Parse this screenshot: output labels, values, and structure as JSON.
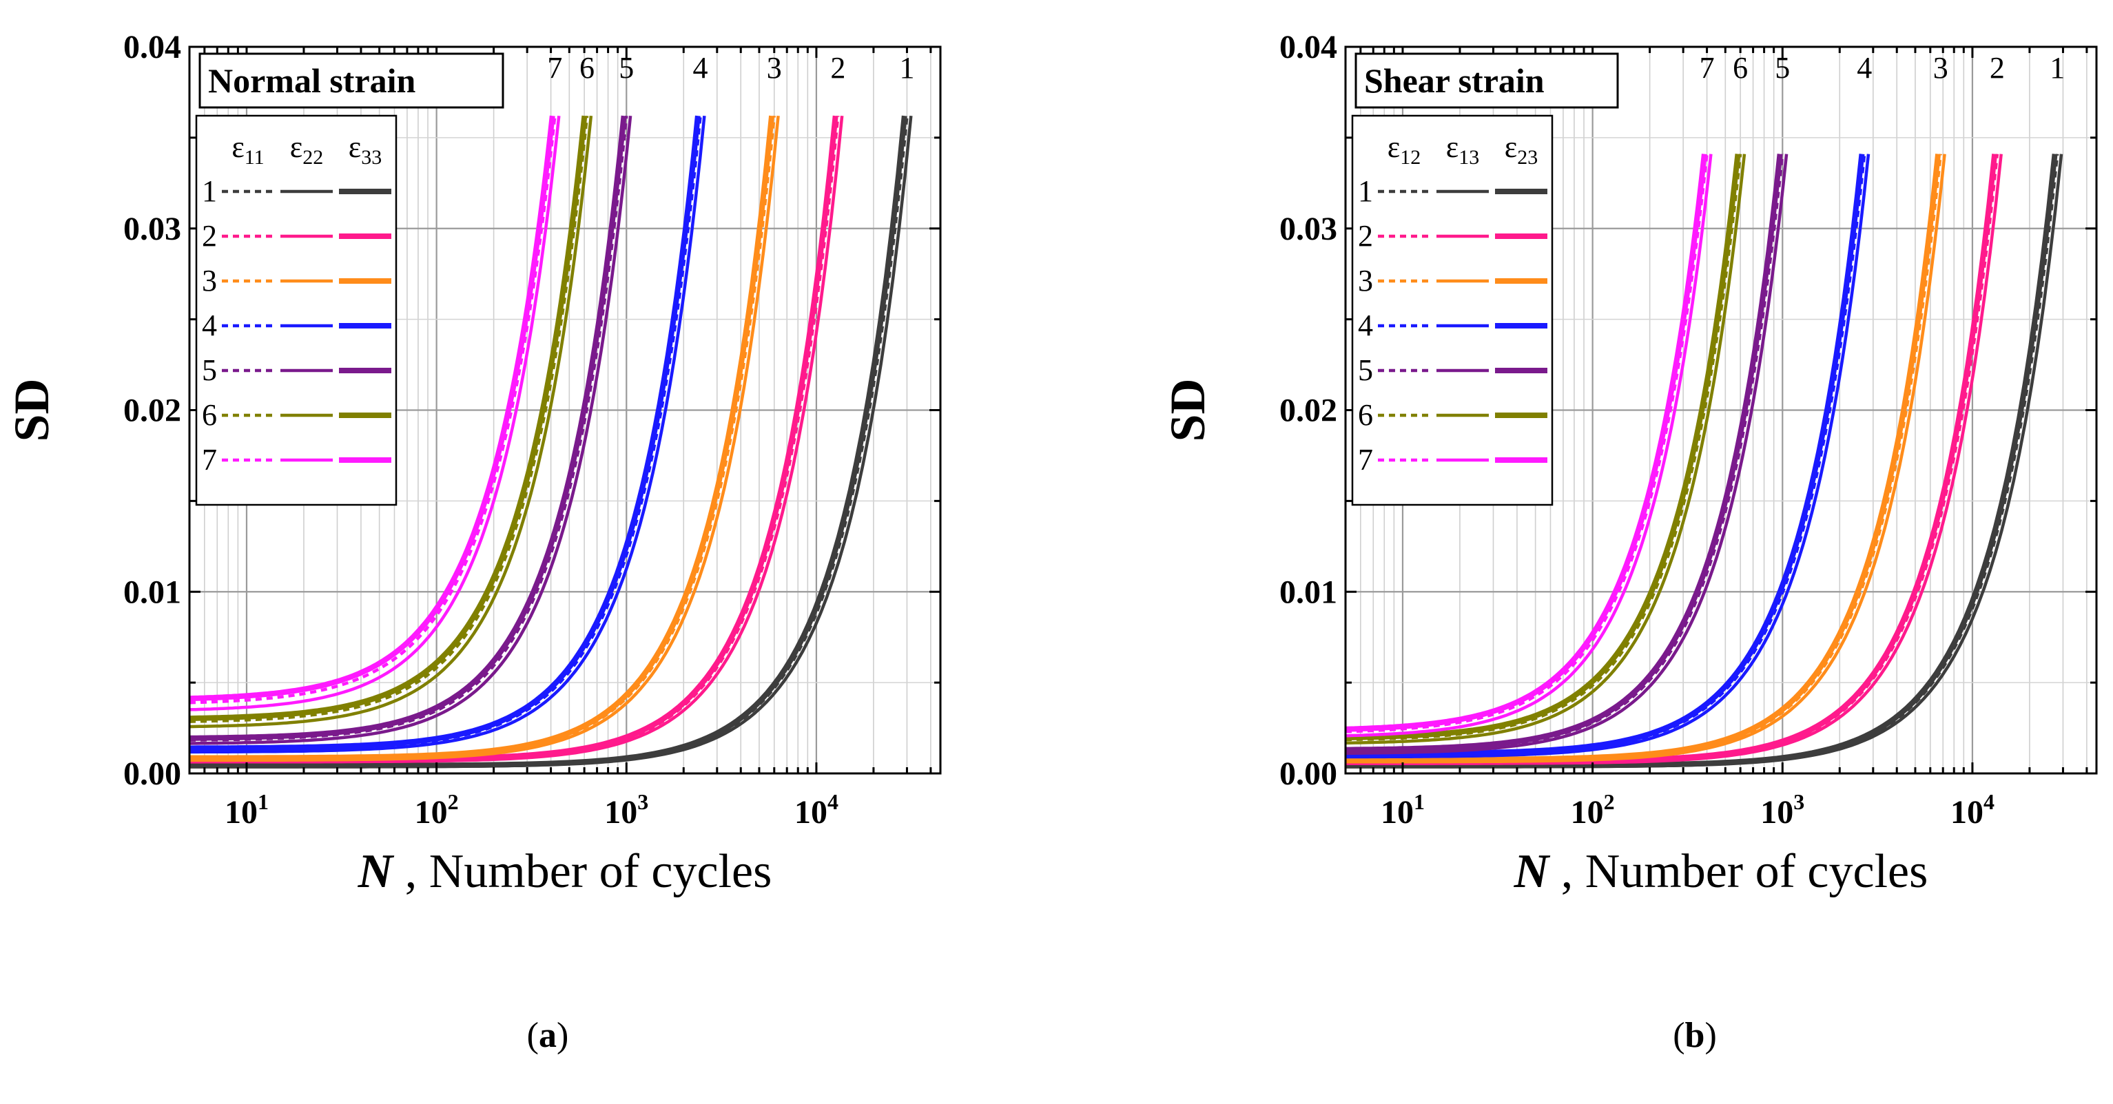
{
  "figure": {
    "caption_a": "(a)",
    "caption_a_open": "(",
    "caption_a_letter": "a",
    "caption_a_close": ")",
    "caption_b": "(b)",
    "caption_b_open": "(",
    "caption_b_letter": "b",
    "caption_b_close": ")"
  },
  "chart_data": [
    {
      "type": "line",
      "title": "Normal strain",
      "xlabel_symbol": "N",
      "xlabel_rest": ", Number of cycles",
      "ylabel": "SD",
      "xscale": "log",
      "xlim": [
        5,
        45000
      ],
      "ylim": [
        0,
        0.04
      ],
      "grid": true,
      "yticks": [
        0.0,
        0.01,
        0.02,
        0.03,
        0.04
      ],
      "ytick_labels": [
        "0.00",
        "0.01",
        "0.02",
        "0.03",
        "0.04"
      ],
      "xticks": [
        {
          "base": "10",
          "exp": "1",
          "value": 10
        },
        {
          "base": "10",
          "exp": "2",
          "value": 100
        },
        {
          "base": "10",
          "exp": "3",
          "value": 1000
        },
        {
          "base": "10",
          "exp": "4",
          "value": 10000
        }
      ],
      "legend_location": "upper-left",
      "legend_columns": [
        {
          "symbol": "ε",
          "sub": "11",
          "dash": "dotted"
        },
        {
          "symbol": "ε",
          "sub": "22",
          "dash": "dashed-thin"
        },
        {
          "symbol": "ε",
          "sub": "33",
          "dash": "dashed-thick"
        }
      ],
      "series": [
        {
          "name": "1",
          "color": "#3d3d3d",
          "base": 0.0004,
          "nf": 30000,
          "peak": 0.0362
        },
        {
          "name": "2",
          "color": "#ff1a8c",
          "base": 0.0007,
          "nf": 13000,
          "peak": 0.0362
        },
        {
          "name": "3",
          "color": "#ff8c1a",
          "base": 0.0008,
          "nf": 6000,
          "peak": 0.0362
        },
        {
          "name": "4",
          "color": "#1a1aff",
          "base": 0.0013,
          "nf": 2450,
          "peak": 0.0362
        },
        {
          "name": "5",
          "color": "#7a1a8c",
          "base": 0.0018,
          "nf": 1000,
          "peak": 0.0362
        },
        {
          "name": "6",
          "color": "#808000",
          "base": 0.0028,
          "nf": 620,
          "peak": 0.0362
        },
        {
          "name": "7",
          "color": "#ff1aff",
          "base": 0.0038,
          "nf": 420,
          "peak": 0.0362
        }
      ]
    },
    {
      "type": "line",
      "title": "Shear strain",
      "xlabel_symbol": "N",
      "xlabel_rest": ", Number of cycles",
      "ylabel": "SD",
      "xscale": "log",
      "xlim": [
        5,
        45000
      ],
      "ylim": [
        0,
        0.04
      ],
      "grid": true,
      "yticks": [
        0.0,
        0.01,
        0.02,
        0.03,
        0.04
      ],
      "ytick_labels": [
        "0.00",
        "0.01",
        "0.02",
        "0.03",
        "0.04"
      ],
      "xticks": [
        {
          "base": "10",
          "exp": "1",
          "value": 10
        },
        {
          "base": "10",
          "exp": "2",
          "value": 100
        },
        {
          "base": "10",
          "exp": "3",
          "value": 1000
        },
        {
          "base": "10",
          "exp": "4",
          "value": 10000
        }
      ],
      "legend_location": "upper-left",
      "legend_columns": [
        {
          "symbol": "ε",
          "sub": "12",
          "dash": "dotted"
        },
        {
          "symbol": "ε",
          "sub": "13",
          "dash": "dashed-thin"
        },
        {
          "symbol": "ε",
          "sub": "23",
          "dash": "dashed-thick"
        }
      ],
      "series": [
        {
          "name": "1",
          "color": "#3d3d3d",
          "base": 0.0004,
          "nf": 28000,
          "peak": 0.0341
        },
        {
          "name": "2",
          "color": "#ff1a8c",
          "base": 0.0006,
          "nf": 13500,
          "peak": 0.0341
        },
        {
          "name": "3",
          "color": "#ff8c1a",
          "base": 0.0007,
          "nf": 6800,
          "peak": 0.0341
        },
        {
          "name": "4",
          "color": "#1a1aff",
          "base": 0.001,
          "nf": 2700,
          "peak": 0.0341
        },
        {
          "name": "5",
          "color": "#7a1a8c",
          "base": 0.0012,
          "nf": 1000,
          "peak": 0.0341
        },
        {
          "name": "6",
          "color": "#808000",
          "base": 0.0018,
          "nf": 600,
          "peak": 0.0341
        },
        {
          "name": "7",
          "color": "#ff1aff",
          "base": 0.0022,
          "nf": 400,
          "peak": 0.0341
        }
      ]
    }
  ]
}
